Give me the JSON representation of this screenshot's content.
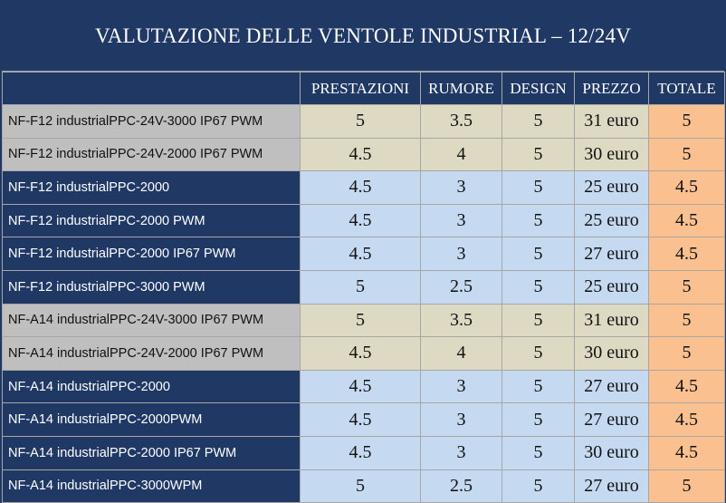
{
  "title": "VALUTAZIONE DELLE VENTOLE INDUSTRIAL – 12/24V",
  "columns": [
    "PRESTAZIONI",
    "RUMORE",
    "DESIGN",
    "PREZZO",
    "TOTALE"
  ],
  "colors": {
    "header_bg": "#1f3864",
    "grey_name_bg": "#bfbfbf",
    "grey_value_bg": "#ddd9c3",
    "blue_value_bg": "#c5d9f1",
    "total_bg": "#fac090"
  },
  "rows": [
    {
      "name": "NF-F12 industrialPPC-24V-3000 IP67 PWM",
      "style": "grey",
      "prestazioni": "5",
      "rumore": "3.5",
      "design": "5",
      "prezzo": "31 euro",
      "totale": "5"
    },
    {
      "name": "NF-F12 industrialPPC-24V-2000 IP67 PWM",
      "style": "grey",
      "prestazioni": "4.5",
      "rumore": "4",
      "design": "5",
      "prezzo": "30 euro",
      "totale": "5"
    },
    {
      "name": "NF-F12 industrialPPC-2000",
      "style": "navy",
      "prestazioni": "4.5",
      "rumore": "3",
      "design": "5",
      "prezzo": "25 euro",
      "totale": "4.5"
    },
    {
      "name": "NF-F12 industrialPPC-2000 PWM",
      "style": "navy",
      "prestazioni": "4.5",
      "rumore": "3",
      "design": "5",
      "prezzo": "25 euro",
      "totale": "4.5"
    },
    {
      "name": "NF-F12 industrialPPC-2000 IP67 PWM",
      "style": "navy",
      "prestazioni": "4.5",
      "rumore": "3",
      "design": "5",
      "prezzo": "27 euro",
      "totale": "4.5"
    },
    {
      "name": "NF-F12 industrialPPC-3000 PWM",
      "style": "navy",
      "prestazioni": "5",
      "rumore": "2.5",
      "design": "5",
      "prezzo": "25 euro",
      "totale": "5"
    },
    {
      "name": "NF-A14 industrialPPC-24V-3000 IP67 PWM",
      "style": "grey",
      "prestazioni": "5",
      "rumore": "3.5",
      "design": "5",
      "prezzo": "31 euro",
      "totale": "5"
    },
    {
      "name": "NF-A14 industrialPPC-24V-2000 IP67 PWM",
      "style": "grey",
      "prestazioni": "4.5",
      "rumore": "4",
      "design": "5",
      "prezzo": "30 euro",
      "totale": "5"
    },
    {
      "name": "NF-A14 industrialPPC-2000",
      "style": "navy",
      "prestazioni": "4.5",
      "rumore": "3",
      "design": "5",
      "prezzo": "27 euro",
      "totale": "4.5"
    },
    {
      "name": "NF-A14 industrialPPC-2000PWM",
      "style": "navy",
      "prestazioni": "4.5",
      "rumore": "3",
      "design": "5",
      "prezzo": "27 euro",
      "totale": "4.5"
    },
    {
      "name": "NF-A14 industrialPPC-2000 IP67 PWM",
      "style": "navy",
      "prestazioni": "4.5",
      "rumore": "3",
      "design": "5",
      "prezzo": "30 euro",
      "totale": "4.5"
    },
    {
      "name": "NF-A14 industrialPPC-3000WPM",
      "style": "navy",
      "prestazioni": "5",
      "rumore": "2.5",
      "design": "5",
      "prezzo": "27 euro",
      "totale": "5"
    }
  ]
}
